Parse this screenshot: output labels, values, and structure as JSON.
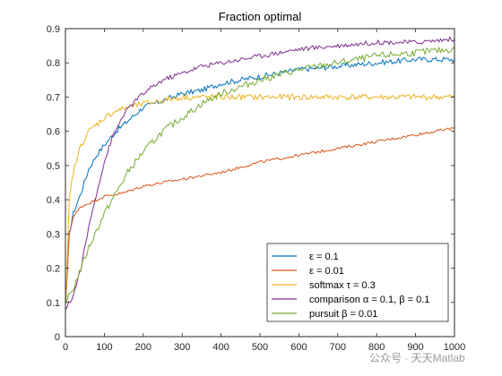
{
  "chart_data": {
    "type": "line",
    "title": "Fraction optimal",
    "xlabel": "",
    "ylabel": "",
    "xlim": [
      0,
      1000
    ],
    "ylim": [
      0,
      0.9
    ],
    "xticks": [
      "0",
      "100",
      "200",
      "300",
      "400",
      "500",
      "600",
      "700",
      "800",
      "900",
      "1000"
    ],
    "yticks": [
      "0",
      "0.1",
      "0.2",
      "0.3",
      "0.4",
      "0.5",
      "0.6",
      "0.7",
      "0.8",
      "0.9"
    ],
    "grid": false,
    "legend_position": "bottom-right",
    "series": [
      {
        "name": "ε = 0.1",
        "color": "#0072BD",
        "x": [
          1,
          10,
          20,
          40,
          60,
          80,
          100,
          130,
          160,
          200,
          250,
          300,
          350,
          400,
          450,
          500,
          600,
          700,
          800,
          900,
          1000
        ],
        "y": [
          0.1,
          0.3,
          0.36,
          0.42,
          0.49,
          0.53,
          0.56,
          0.6,
          0.63,
          0.67,
          0.69,
          0.71,
          0.72,
          0.74,
          0.75,
          0.76,
          0.78,
          0.79,
          0.8,
          0.81,
          0.81
        ]
      },
      {
        "name": "ε = 0.01",
        "color": "#D95319",
        "x": [
          1,
          10,
          20,
          40,
          60,
          100,
          150,
          200,
          300,
          400,
          500,
          600,
          700,
          800,
          900,
          1000
        ],
        "y": [
          0.1,
          0.3,
          0.35,
          0.38,
          0.39,
          0.41,
          0.42,
          0.44,
          0.46,
          0.48,
          0.51,
          0.53,
          0.55,
          0.57,
          0.59,
          0.61
        ]
      },
      {
        "name": "softmax τ = 0.3",
        "color": "#EDB120",
        "x": [
          1,
          10,
          20,
          40,
          60,
          80,
          100,
          130,
          160,
          200,
          250,
          300,
          400,
          500,
          600,
          700,
          800,
          900,
          1000
        ],
        "y": [
          0.1,
          0.4,
          0.48,
          0.56,
          0.6,
          0.62,
          0.64,
          0.66,
          0.67,
          0.68,
          0.69,
          0.7,
          0.7,
          0.7,
          0.7,
          0.7,
          0.7,
          0.7,
          0.7
        ]
      },
      {
        "name": "comparison α = 0.1, β = 0.1",
        "color": "#7E2F8E",
        "x": [
          1,
          20,
          40,
          60,
          80,
          100,
          120,
          150,
          180,
          200,
          250,
          300,
          350,
          400,
          500,
          600,
          700,
          800,
          900,
          1000
        ],
        "y": [
          0.08,
          0.12,
          0.2,
          0.32,
          0.42,
          0.51,
          0.58,
          0.65,
          0.69,
          0.71,
          0.75,
          0.77,
          0.79,
          0.8,
          0.82,
          0.84,
          0.85,
          0.86,
          0.86,
          0.87
        ]
      },
      {
        "name": "pursuit β = 0.01",
        "color": "#77AC30",
        "x": [
          1,
          20,
          40,
          60,
          80,
          100,
          130,
          160,
          200,
          250,
          300,
          350,
          400,
          450,
          500,
          600,
          700,
          800,
          900,
          1000
        ],
        "y": [
          0.1,
          0.14,
          0.2,
          0.26,
          0.31,
          0.36,
          0.42,
          0.48,
          0.54,
          0.6,
          0.64,
          0.68,
          0.71,
          0.73,
          0.75,
          0.78,
          0.8,
          0.82,
          0.83,
          0.84
        ]
      }
    ]
  },
  "legend": {
    "items": [
      "ε = 0.1",
      "ε = 0.01",
      "softmax τ = 0.3",
      "comparison α = 0.1, β = 0.1",
      "pursuit β = 0.01"
    ]
  },
  "watermark": {
    "text": "公众号 · 天天Matlab"
  }
}
